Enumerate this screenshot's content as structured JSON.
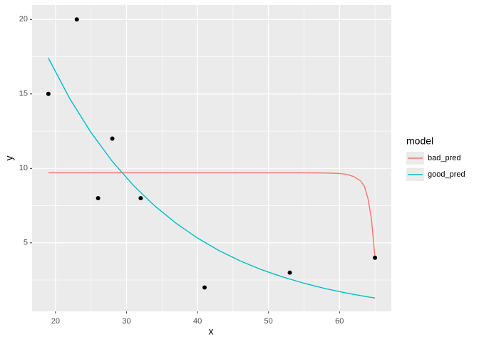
{
  "chart_data": {
    "type": "scatter-line",
    "x_label": "x",
    "y_label": "y",
    "xlim": [
      16.7,
      67.3
    ],
    "ylim": [
      0.4,
      20.97
    ],
    "xticks": [
      20,
      30,
      40,
      50,
      60
    ],
    "yticks": [
      5,
      10,
      15,
      20
    ],
    "minor_xticks": [
      15,
      25,
      35,
      45,
      55,
      65
    ],
    "minor_yticks": [
      2.5,
      7.5,
      12.5,
      17.5
    ],
    "grid": true,
    "points": {
      "color": "#000000",
      "x": [
        19,
        23,
        26,
        28,
        32,
        41,
        53,
        65
      ],
      "values": [
        15,
        20,
        8,
        12,
        8,
        2,
        3,
        4
      ]
    },
    "legend_title": "model",
    "series": [
      {
        "name": "bad_pred",
        "color": "#F8766D",
        "x": [
          19,
          30,
          40,
          50,
          55,
          58,
          60,
          61,
          62,
          63,
          63.5,
          64,
          64.5,
          65
        ],
        "values": [
          9.7,
          9.7,
          9.7,
          9.7,
          9.7,
          9.69,
          9.66,
          9.6,
          9.45,
          9.15,
          8.8,
          8.0,
          6.6,
          4.0
        ]
      },
      {
        "name": "good_pred",
        "color": "#00BFC4",
        "x": [
          19,
          22,
          25,
          28,
          31,
          34,
          37,
          40,
          43,
          46,
          49,
          52,
          55,
          58,
          61,
          64,
          65
        ],
        "values": [
          17.4,
          14.69,
          12.41,
          10.47,
          8.84,
          7.47,
          6.31,
          5.32,
          4.49,
          3.79,
          3.2,
          2.71,
          2.29,
          1.93,
          1.63,
          1.37,
          1.3
        ]
      }
    ]
  }
}
